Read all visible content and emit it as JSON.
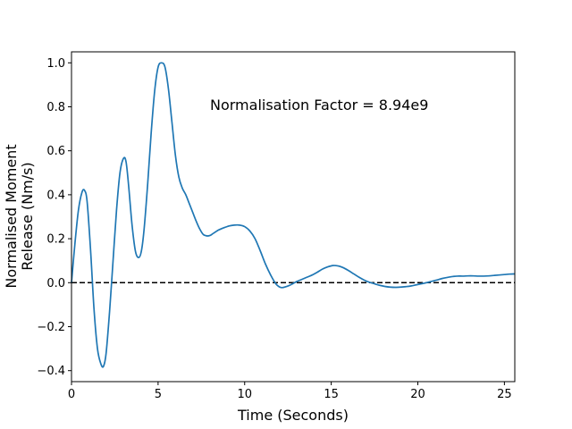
{
  "chart_data": {
    "type": "line",
    "title": "",
    "xlabel": "Time (Seconds)",
    "ylabel_lines": [
      "Normalised Moment",
      "Release (Nm/s)"
    ],
    "xlim": [
      0,
      25.6
    ],
    "ylim": [
      -0.45,
      1.05
    ],
    "xticks": [
      0,
      5,
      10,
      15,
      20,
      25
    ],
    "xtick_labels": [
      "0",
      "5",
      "10",
      "15",
      "20",
      "25"
    ],
    "yticks": [
      -0.4,
      -0.2,
      0.0,
      0.2,
      0.4,
      0.6,
      0.8,
      1.0
    ],
    "ytick_labels": [
      "−0.4",
      "−0.2",
      "0.0",
      "0.2",
      "0.4",
      "0.6",
      "0.8",
      "1.0"
    ],
    "grid": false,
    "annotation": "Normalisation Factor = 8.94e9",
    "reference_line": {
      "y": 0,
      "style": "dashed",
      "color": "#000000"
    },
    "series": [
      {
        "color": "#1f77b4",
        "x": [
          0,
          0.2,
          0.4,
          0.6,
          0.75,
          0.9,
          1.1,
          1.3,
          1.5,
          1.7,
          1.85,
          2.0,
          2.2,
          2.4,
          2.6,
          2.8,
          3.0,
          3.15,
          3.3,
          3.5,
          3.7,
          3.9,
          4.05,
          4.2,
          4.4,
          4.6,
          4.8,
          5.0,
          5.2,
          5.4,
          5.6,
          5.8,
          6.0,
          6.2,
          6.4,
          6.6,
          6.8,
          7.0,
          7.2,
          7.4,
          7.6,
          7.8,
          8.0,
          8.2,
          8.5,
          8.8,
          9.1,
          9.4,
          9.7,
          10.0,
          10.3,
          10.6,
          10.9,
          11.2,
          11.5,
          11.8,
          12.1,
          12.4,
          12.7,
          13.0,
          13.3,
          13.6,
          13.9,
          14.2,
          14.5,
          14.8,
          15.1,
          15.4,
          15.7,
          16.0,
          16.3,
          16.6,
          16.9,
          17.2,
          17.5,
          17.8,
          18.1,
          18.4,
          18.7,
          19.0,
          19.3,
          19.6,
          19.9,
          20.2,
          20.5,
          20.8,
          21.1,
          21.4,
          21.7,
          22.0,
          22.3,
          22.6,
          22.9,
          23.2,
          23.5,
          23.8,
          24.1,
          24.4,
          24.7,
          25.0,
          25.3,
          25.6
        ],
        "y": [
          0.0,
          0.18,
          0.33,
          0.41,
          0.42,
          0.37,
          0.15,
          -0.12,
          -0.3,
          -0.37,
          -0.38,
          -0.32,
          -0.13,
          0.1,
          0.33,
          0.5,
          0.565,
          0.55,
          0.44,
          0.26,
          0.14,
          0.115,
          0.15,
          0.25,
          0.45,
          0.68,
          0.87,
          0.98,
          1.0,
          0.98,
          0.88,
          0.73,
          0.58,
          0.48,
          0.43,
          0.4,
          0.36,
          0.32,
          0.28,
          0.245,
          0.22,
          0.213,
          0.215,
          0.225,
          0.24,
          0.25,
          0.258,
          0.262,
          0.262,
          0.255,
          0.235,
          0.2,
          0.145,
          0.085,
          0.035,
          -0.005,
          -0.022,
          -0.018,
          -0.008,
          0.005,
          0.015,
          0.025,
          0.035,
          0.048,
          0.062,
          0.072,
          0.078,
          0.076,
          0.068,
          0.055,
          0.04,
          0.025,
          0.012,
          0.002,
          -0.005,
          -0.012,
          -0.017,
          -0.02,
          -0.021,
          -0.02,
          -0.018,
          -0.015,
          -0.01,
          -0.005,
          0.0,
          0.006,
          0.012,
          0.019,
          0.024,
          0.028,
          0.03,
          0.03,
          0.031,
          0.031,
          0.03,
          0.03,
          0.031,
          0.033,
          0.035,
          0.037,
          0.039,
          0.04
        ]
      }
    ]
  }
}
